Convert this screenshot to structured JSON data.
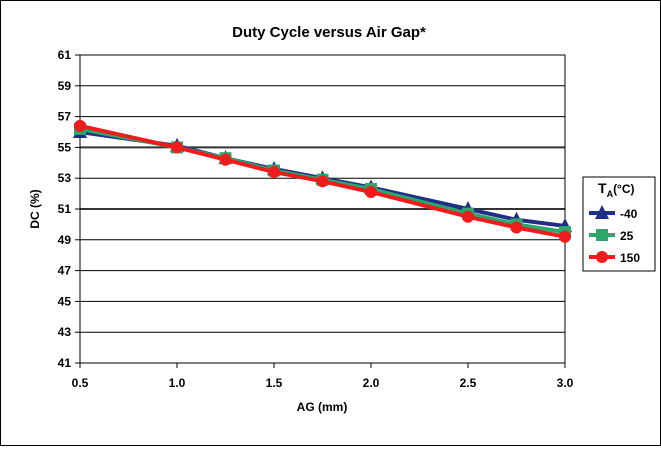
{
  "chart_data": {
    "type": "line",
    "title": "Duty Cycle versus Air Gap*",
    "xlabel": "AG (mm)",
    "ylabel": "DC (%)",
    "xlim": [
      0.5,
      3.0
    ],
    "ylim": [
      41,
      61
    ],
    "x_ticks": [
      "0.5",
      "1.0",
      "1.5",
      "2.0",
      "2.5",
      "3.0"
    ],
    "y_ticks": [
      "41",
      "43",
      "45",
      "47",
      "49",
      "51",
      "53",
      "55",
      "57",
      "59",
      "61"
    ],
    "grid": "horizontal",
    "legend": {
      "title_main": "T",
      "title_sub": "A",
      "title_unit": "(°C)",
      "placement": "right"
    },
    "x": [
      0.5,
      1.0,
      1.25,
      1.5,
      1.75,
      2.0,
      2.5,
      2.75,
      3.0
    ],
    "series": [
      {
        "name": "-40",
        "marker": "triangle",
        "color": "#1f2f86",
        "values": [
          56.0,
          55.1,
          54.3,
          53.6,
          53.0,
          52.4,
          51.0,
          50.3,
          49.9
        ]
      },
      {
        "name": "25",
        "marker": "square",
        "color": "#2ca66b",
        "values": [
          56.2,
          55.0,
          54.3,
          53.5,
          52.9,
          52.3,
          50.7,
          50.0,
          49.5
        ]
      },
      {
        "name": "150",
        "marker": "circle",
        "color": "#ee1c1c",
        "values": [
          56.4,
          55.0,
          54.2,
          53.4,
          52.8,
          52.1,
          50.5,
          49.8,
          49.2
        ]
      }
    ]
  }
}
